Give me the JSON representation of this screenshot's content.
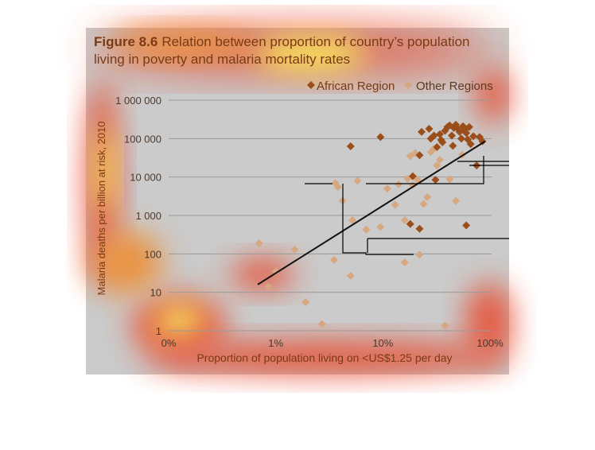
{
  "chart_data": {
    "type": "scatter",
    "title_prefix": "Figure 8.6",
    "title_line1": "Relation between proportion of country’s population",
    "title_line2": "living in poverty and malaria mortality rates",
    "xlabel": "Proportion of population living on <US$1.25 per day",
    "ylabel": "Malaria deaths per billion at risk, 2010",
    "x_scale": "log",
    "y_scale": "log",
    "x_ticks": [
      {
        "value": 0.1,
        "label": "0%"
      },
      {
        "value": 1,
        "label": "1%"
      },
      {
        "value": 10,
        "label": "10%"
      },
      {
        "value": 100,
        "label": "100%"
      }
    ],
    "y_ticks": [
      {
        "value": 1,
        "label": "1"
      },
      {
        "value": 10,
        "label": "10"
      },
      {
        "value": 100,
        "label": "100"
      },
      {
        "value": 1000,
        "label": "1 000"
      },
      {
        "value": 10000,
        "label": "10 000"
      },
      {
        "value": 100000,
        "label": "100 000"
      },
      {
        "value": 1000000,
        "label": "1 000 000"
      }
    ],
    "grid": true,
    "legend_position": "top-right",
    "series": [
      {
        "name": "African Region",
        "color": "#9b4e1a",
        "points": [
          [
            5,
            63000
          ],
          [
            9.5,
            110000
          ],
          [
            22,
            37000
          ],
          [
            23,
            150000
          ],
          [
            27,
            180000
          ],
          [
            28,
            100000
          ],
          [
            30,
            120000
          ],
          [
            32,
            60000
          ],
          [
            34,
            130000
          ],
          [
            36,
            80000
          ],
          [
            38,
            160000
          ],
          [
            40,
            200000
          ],
          [
            42,
            220000
          ],
          [
            44,
            120000
          ],
          [
            46,
            190000
          ],
          [
            48,
            230000
          ],
          [
            50,
            180000
          ],
          [
            52,
            150000
          ],
          [
            54,
            100000
          ],
          [
            56,
            210000
          ],
          [
            58,
            170000
          ],
          [
            60,
            140000
          ],
          [
            62,
            95000
          ],
          [
            64,
            200000
          ],
          [
            66,
            72000
          ],
          [
            70,
            115000
          ],
          [
            75,
            20000
          ],
          [
            80,
            110000
          ],
          [
            85,
            85000
          ],
          [
            31,
            8500
          ],
          [
            60,
            550
          ],
          [
            19,
            10500
          ],
          [
            18,
            600
          ],
          [
            22,
            450
          ],
          [
            35,
            92000
          ],
          [
            45,
            65000
          ]
        ]
      },
      {
        "name": "Other Regions",
        "color": "#d6a882",
        "points": [
          [
            0.7,
            190
          ],
          [
            0.85,
            14
          ],
          [
            1.0,
            35
          ],
          [
            1.5,
            130
          ],
          [
            1.9,
            5.5
          ],
          [
            2.7,
            1.5
          ],
          [
            3.5,
            70
          ],
          [
            3.6,
            7000
          ],
          [
            3.8,
            5500
          ],
          [
            4.2,
            2400
          ],
          [
            5,
            27
          ],
          [
            5.2,
            750
          ],
          [
            5.8,
            8000
          ],
          [
            7,
            430
          ],
          [
            9.5,
            500
          ],
          [
            11,
            5000
          ],
          [
            13,
            1900
          ],
          [
            14,
            6500
          ],
          [
            16,
            60
          ],
          [
            16,
            750
          ],
          [
            17,
            9000
          ],
          [
            18,
            35000
          ],
          [
            19,
            6200
          ],
          [
            20,
            42000
          ],
          [
            21,
            8500
          ],
          [
            22,
            95
          ],
          [
            24,
            2000
          ],
          [
            26,
            3000
          ],
          [
            28,
            45000
          ],
          [
            30,
            55000
          ],
          [
            32,
            20000
          ],
          [
            34,
            28000
          ],
          [
            42,
            8800
          ],
          [
            48,
            2400
          ],
          [
            55,
            38000
          ],
          [
            38,
            1.35
          ]
        ]
      }
    ],
    "trendline": {
      "x": [
        0.68,
        90
      ],
      "y": [
        16,
        85000
      ]
    }
  }
}
